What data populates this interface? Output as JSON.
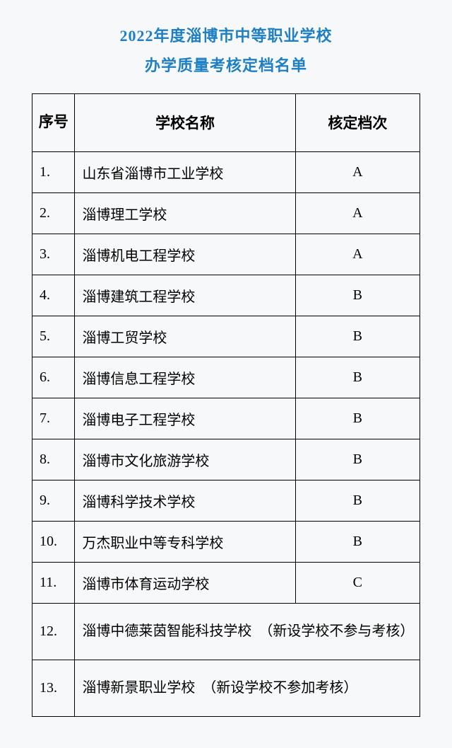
{
  "title": {
    "line1": "2022年度淄博市中等职业学校",
    "line2": "办学质量考核定档名单"
  },
  "table": {
    "headers": {
      "seq": "序号",
      "name": "学校名称",
      "grade": "核定档次"
    },
    "columns": {
      "seq_width": 60,
      "name_width": 310,
      "grade_width": 175
    },
    "colors": {
      "title_color": "#1e7fc4",
      "border_color": "#000000",
      "background_color": "#f7f8f9"
    },
    "fonts": {
      "title_size": 22,
      "header_size": 21,
      "cell_size": 20
    },
    "rows": [
      {
        "seq": "1.",
        "name": "山东省淄博市工业学校",
        "grade": "A"
      },
      {
        "seq": "2.",
        "name": "淄博理工学校",
        "grade": "A"
      },
      {
        "seq": "3.",
        "name": "淄博机电工程学校",
        "grade": "A"
      },
      {
        "seq": "4.",
        "name": "淄博建筑工程学校",
        "grade": "B"
      },
      {
        "seq": "5.",
        "name": "淄博工贸学校",
        "grade": "B"
      },
      {
        "seq": "6.",
        "name": "淄博信息工程学校",
        "grade": "B"
      },
      {
        "seq": "7.",
        "name": "淄博电子工程学校",
        "grade": "B"
      },
      {
        "seq": "8.",
        "name": "淄博市文化旅游学校",
        "grade": "B"
      },
      {
        "seq": "9.",
        "name": "淄博科学技术学校",
        "grade": "B"
      },
      {
        "seq": "10.",
        "name": "万杰职业中等专科学校",
        "grade": "B"
      },
      {
        "seq": "11.",
        "name": "淄博市体育运动学校",
        "grade": "C"
      }
    ],
    "merged_rows": [
      {
        "seq": "12.",
        "text": "淄博中德莱茵智能科技学校　（新设学校不参与考核）"
      },
      {
        "seq": "13.",
        "text": "淄博新景职业学校　（新设学校不参加考核）"
      }
    ]
  }
}
